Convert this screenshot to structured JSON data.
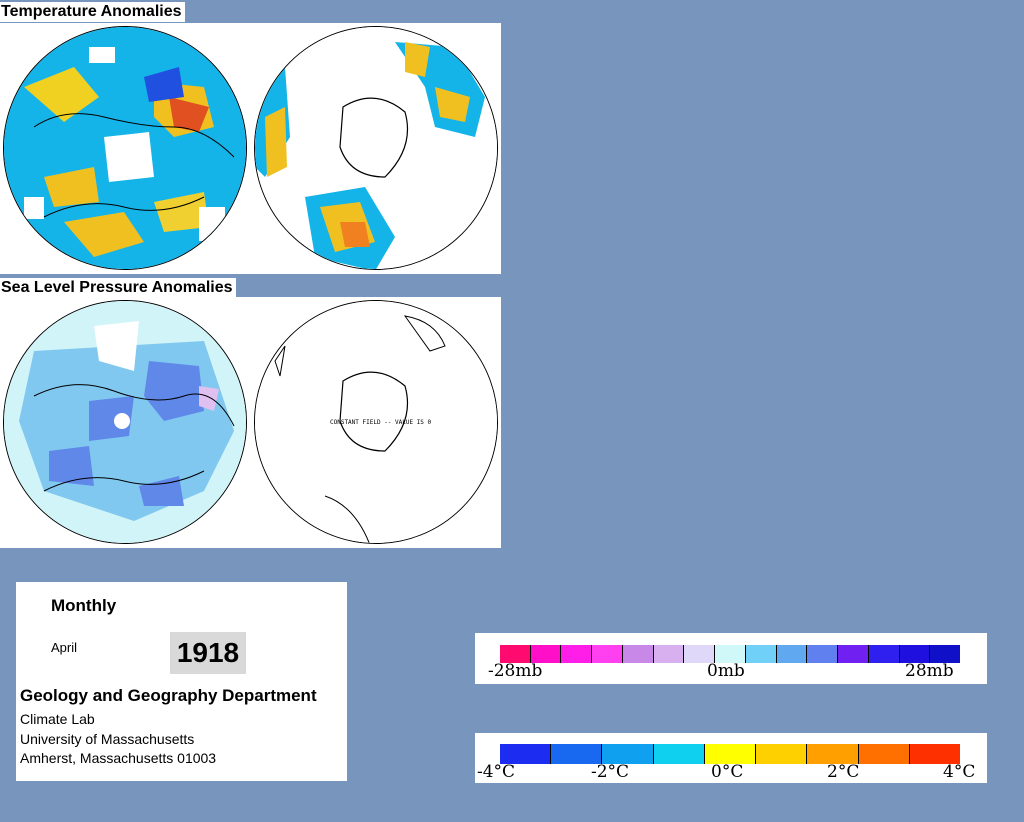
{
  "temperature": {
    "title": "Temperature Anomalies"
  },
  "pressure": {
    "title": "Sea Level Pressure Anomalies",
    "constant_field_note": "CONSTANT FIELD -- VALUE IS 0"
  },
  "info": {
    "period_type": "Monthly",
    "month": "April",
    "year": "1918",
    "department": "Geology and Geography Department",
    "lab": "Climate Lab",
    "university": "University of Massachusetts",
    "location": "Amherst, Massachusetts 01003"
  },
  "pressure_legend": {
    "labels": {
      "left": "-28mb",
      "center": "0mb",
      "right": "28mb"
    },
    "colors": [
      "#ff0a6e",
      "#ff10c8",
      "#ff1ee8",
      "#ff40f0",
      "#c888e8",
      "#d8b0f0",
      "#e0d8f8",
      "#d0f8f8",
      "#70d0f8",
      "#60a8f0",
      "#6080f0",
      "#7020f0",
      "#3020f0",
      "#2010e0",
      "#1010c8"
    ]
  },
  "temperature_legend": {
    "labels": {
      "l4": "-4°C",
      "l2": "-2°C",
      "zero": "0°C",
      "r2": "2°C",
      "r4": "4°C"
    },
    "colors": [
      "#1c2cf0",
      "#1868f0",
      "#10a0f0",
      "#10d0f0",
      "#ffff00",
      "#ffd000",
      "#ffa000",
      "#ff7000",
      "#ff3000"
    ]
  }
}
